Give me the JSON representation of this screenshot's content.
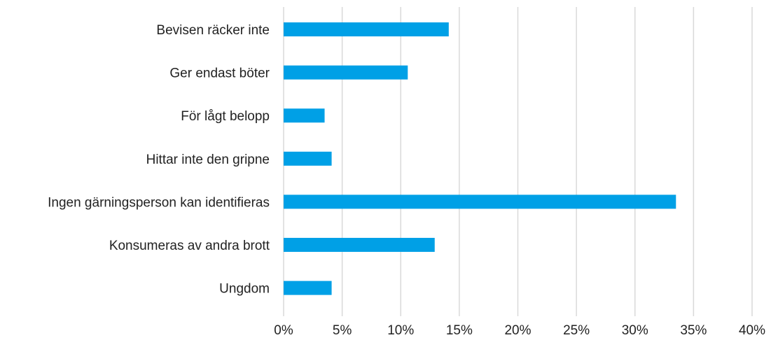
{
  "chart_data": {
    "type": "bar",
    "orientation": "horizontal",
    "title": "",
    "xlabel": "",
    "ylabel": "",
    "categories": [
      "Bevisen räcker inte",
      "Ger endast böter",
      "För lågt belopp",
      "Hittar inte den gripne",
      "Ingen gärningsperson kan identifieras",
      "Konsumeras av andra brott",
      "Ungdom"
    ],
    "values": [
      14.1,
      10.6,
      3.5,
      4.1,
      33.5,
      12.9,
      4.1
    ],
    "xlim": [
      0,
      40
    ],
    "xticks": [
      0,
      5,
      10,
      15,
      20,
      25,
      30,
      35,
      40
    ],
    "tick_labels": [
      "0%",
      "5%",
      "10%",
      "15%",
      "20%",
      "25%",
      "30%",
      "35%",
      "40%"
    ],
    "unit": "%",
    "grid": "vertical",
    "legend": "none",
    "bar_color": "#00a0e6"
  }
}
